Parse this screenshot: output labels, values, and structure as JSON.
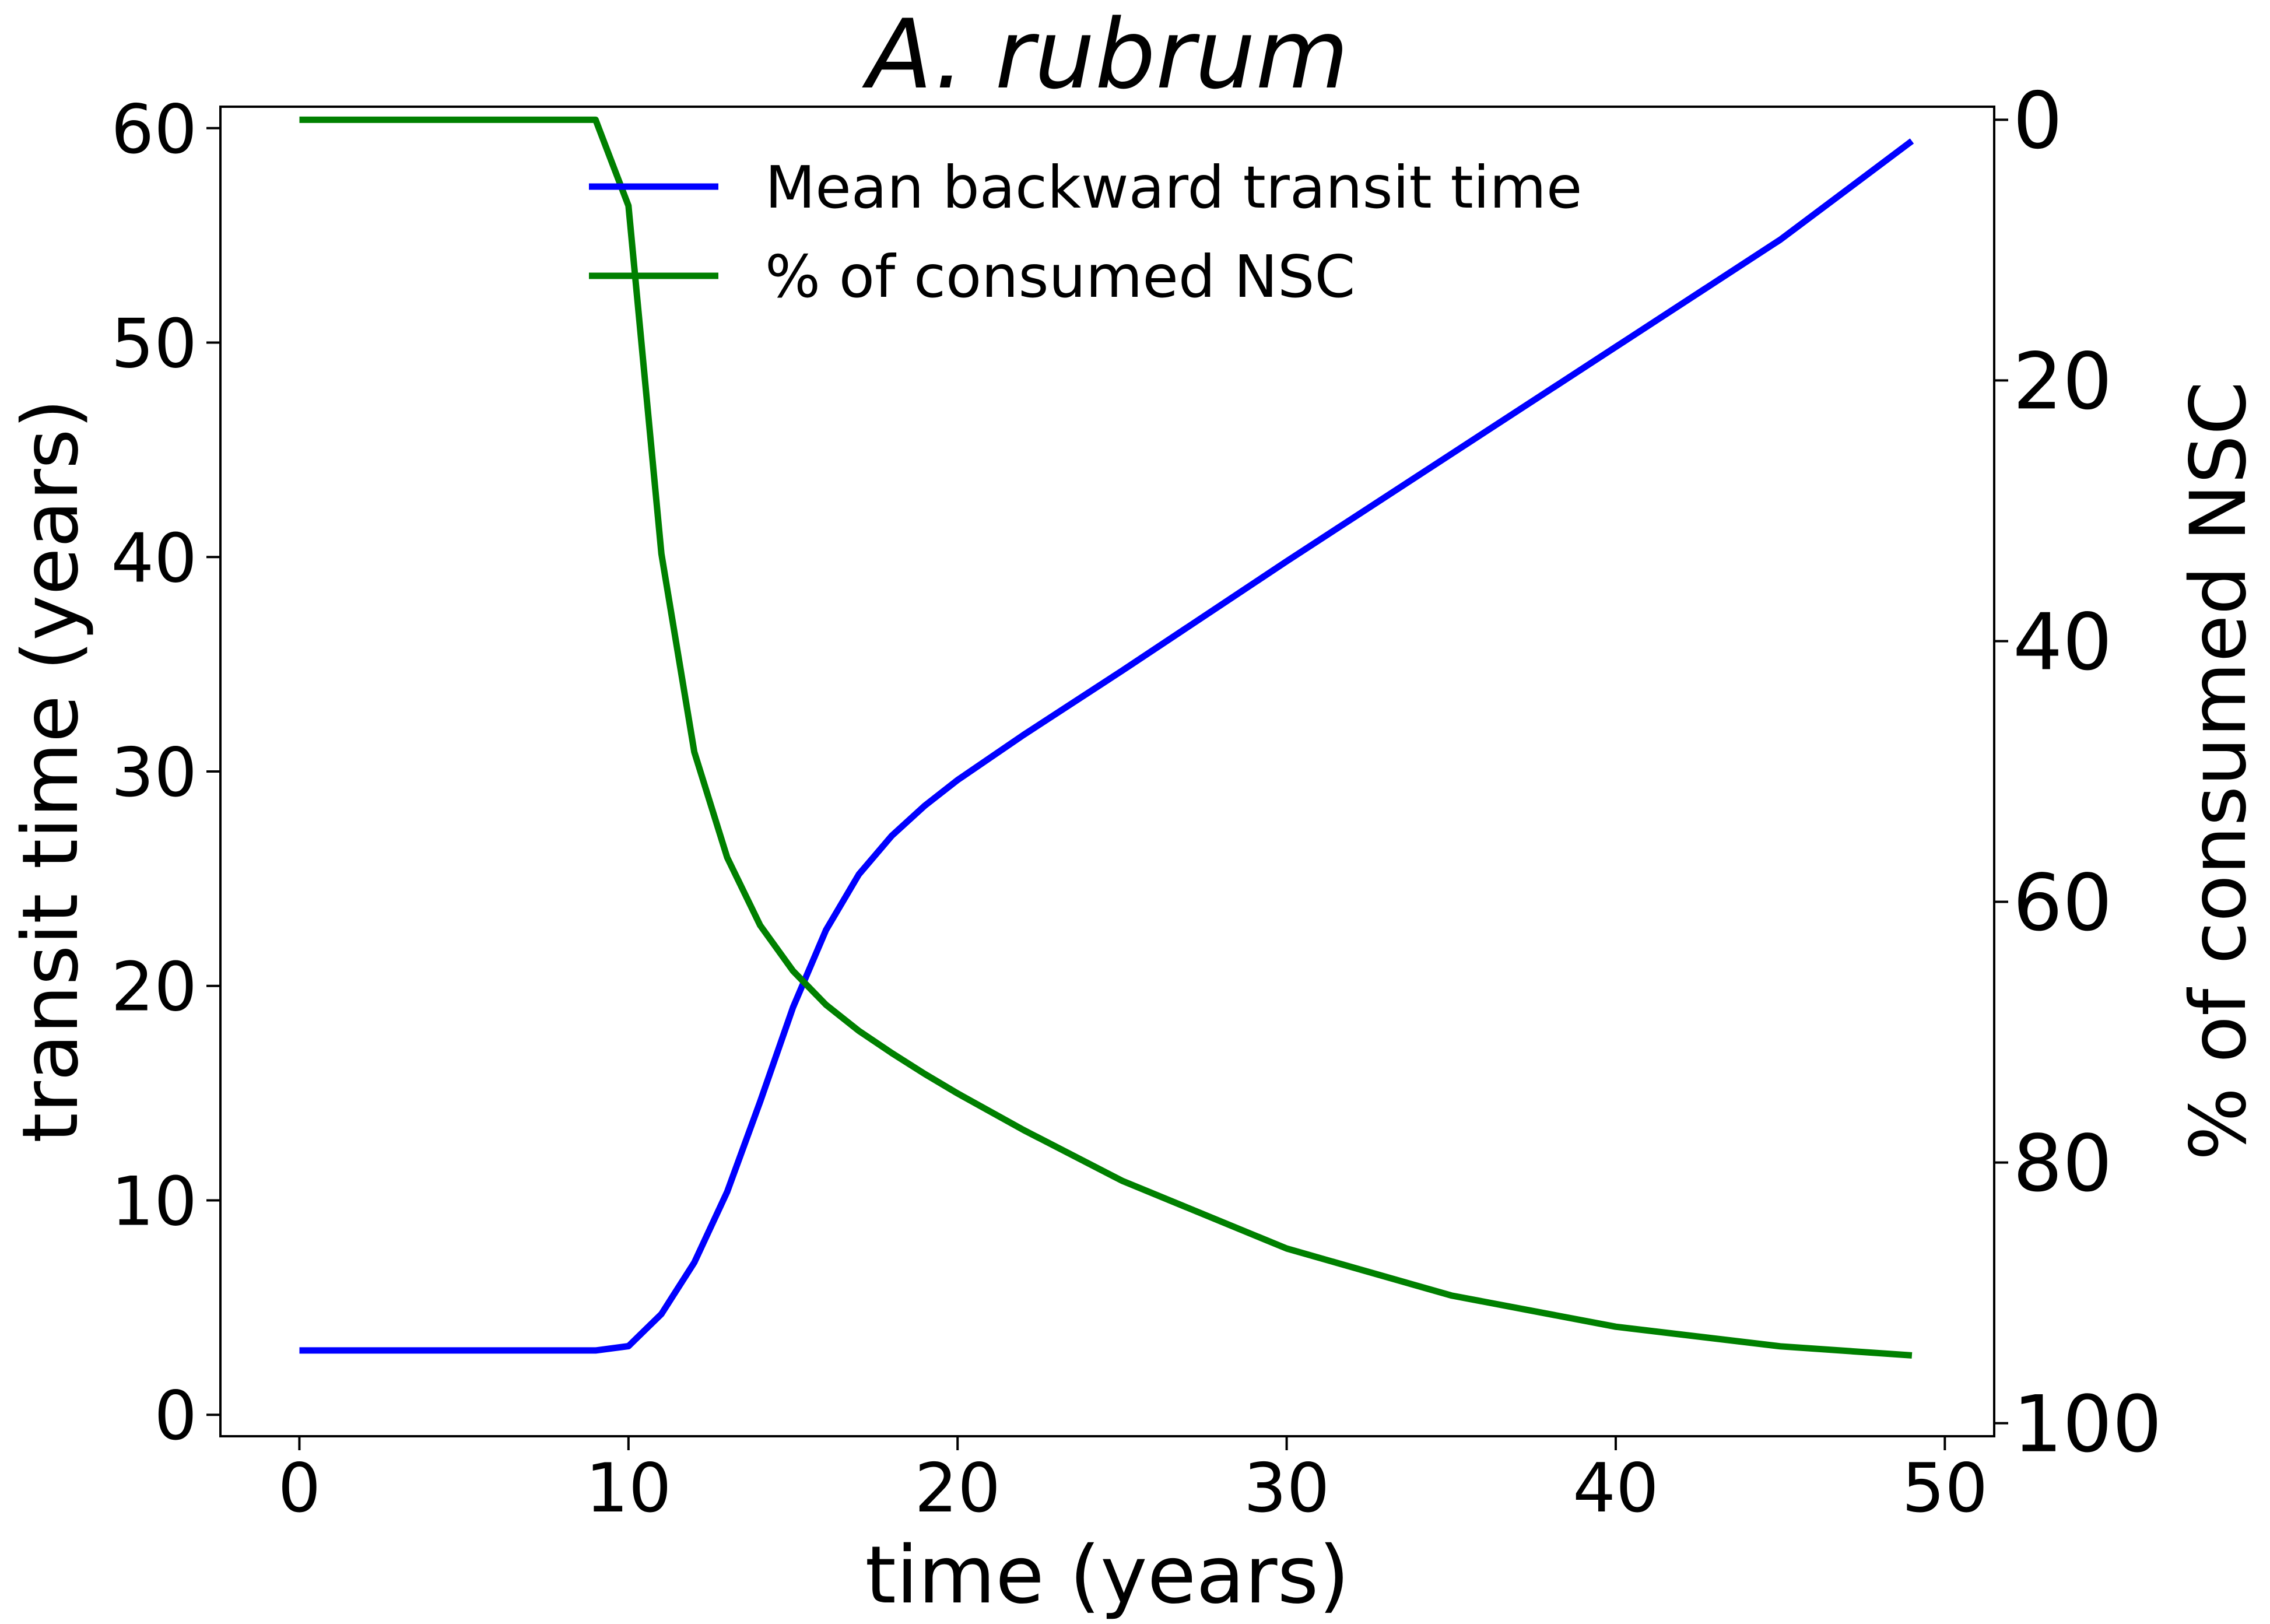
{
  "chart_data": {
    "type": "line",
    "title": "A. rubrum",
    "xlabel": "time (years)",
    "ylabel_left": "transit time (years)",
    "ylabel_right": "% of consumed NSC",
    "xlim": [
      -2.4,
      51.5
    ],
    "ylim_left": [
      -1,
      61
    ],
    "ylim_right": [
      101,
      -1
    ],
    "xticks": [
      0,
      10,
      20,
      30,
      40,
      50
    ],
    "yticks_left": [
      0,
      10,
      20,
      30,
      40,
      50,
      60
    ],
    "yticks_right": [
      0,
      20,
      40,
      60,
      80,
      100
    ],
    "grid": false,
    "legend_position": "top-center",
    "series": [
      {
        "name": "Mean backward transit time",
        "axis": "left",
        "color": "#0000ff",
        "x": [
          0,
          9,
          10,
          11,
          12,
          13,
          14,
          15,
          16,
          17,
          18,
          19,
          20,
          22,
          25,
          30,
          35,
          40,
          45,
          49
        ],
        "values": [
          3,
          3,
          3.2,
          4.7,
          7.1,
          10.4,
          14.6,
          19,
          22.6,
          25.2,
          27.0,
          28.4,
          29.6,
          31.7,
          34.7,
          39.8,
          44.8,
          49.8,
          54.8,
          59.4
        ]
      },
      {
        "name": "% of consumed NSC",
        "axis": "right",
        "color": "#008000",
        "x": [
          0,
          9,
          10,
          11,
          12,
          13,
          14,
          15,
          16,
          17,
          18,
          19,
          20,
          22,
          25,
          30,
          35,
          40,
          45,
          49
        ],
        "values": [
          0,
          0,
          6.6,
          33.3,
          48.5,
          56.6,
          61.8,
          65.3,
          67.9,
          69.9,
          71.6,
          73.2,
          74.7,
          77.5,
          81.4,
          86.6,
          90.2,
          92.6,
          94.1,
          94.8
        ]
      }
    ]
  }
}
